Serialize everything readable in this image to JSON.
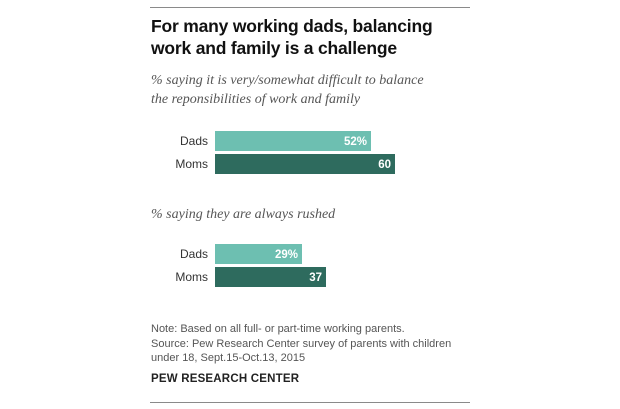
{
  "title_lines": [
    "For many working dads, balancing",
    "work and family is a challenge"
  ],
  "note_lines": [
    "Note: Based on all full- or part-time working parents.",
    "Source: Pew Research Center survey of parents with children",
    "under 18, Sept.15-Oct.13, 2015"
  ],
  "source_label": "PEW RESEARCH CENTER",
  "colors": {
    "dads": "#6dbfb1",
    "moms": "#2e6b5e",
    "label_text": "#ffffff"
  },
  "chart_data": [
    {
      "type": "bar",
      "subtitle_lines": [
        "% saying it is very/somewhat difficult to balance",
        "the reponsibilities of work and family"
      ],
      "categories": [
        "Dads",
        "Moms"
      ],
      "values": [
        52,
        60
      ],
      "value_labels": [
        "52%",
        "60"
      ],
      "xlim": [
        0,
        100
      ]
    },
    {
      "type": "bar",
      "subtitle_lines": [
        "% saying they are always rushed"
      ],
      "categories": [
        "Dads",
        "Moms"
      ],
      "values": [
        29,
        37
      ],
      "value_labels": [
        "29%",
        "37"
      ],
      "xlim": [
        0,
        100
      ]
    }
  ]
}
